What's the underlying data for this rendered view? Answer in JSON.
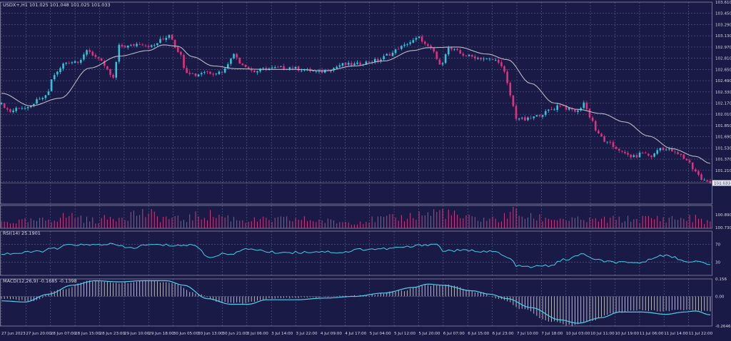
{
  "colors": {
    "background": "#1a1a46",
    "grid": "#5d5d8e",
    "axis_text": "#d8d8e8",
    "bull_candle": "#2ec6d8",
    "bear_candle": "#e0307e",
    "moving_average": "#b8b8c8",
    "volume": "#d23a80",
    "rsi_line": "#3fd0e6",
    "macd_line": "#4fd0e8",
    "macd_histogram": "#c8c8d0",
    "price_badge_bg": "#e8e8f0",
    "price_badge_text": "#1a1a46"
  },
  "chart_data": [
    {
      "id": "price",
      "type": "candlestick",
      "title": "USDX+,H1  101.025 101.048 101.025 101.033",
      "y_ticks": [
        "103.610",
        "103.450",
        "103.290",
        "103.130",
        "102.970",
        "102.810",
        "102.650",
        "102.490",
        "102.330",
        "102.170",
        "102.010",
        "101.850",
        "101.690",
        "101.530",
        "101.370",
        "101.210",
        "101.050",
        "100.890",
        "100.730"
      ],
      "ylim": [
        100.73,
        103.61
      ],
      "current_price_label": "101.033",
      "x_ticks": [
        "27 Jun 2023",
        "27 Jun 20:00",
        "28 Jun 07:00",
        "28 Jun 15:00",
        "28 Jun 23:00",
        "29 Jun 10:00",
        "29 Jun 18:00",
        "30 Jun 05:00",
        "30 Jun 13:00",
        "30 Jun 21:00",
        "3 Jul 06:00",
        "3 Jul 14:00",
        "3 Jul 22:00",
        "4 Jul 09:00",
        "4 Jul 17:00",
        "5 Jul 04:00",
        "5 Jul 12:00",
        "5 Jul 20:00",
        "6 Jul 07:00",
        "6 Jul 15:00",
        "6 Jul 23:00",
        "7 Jul 10:00",
        "7 Jul 18:00",
        "10 Jul 03:00",
        "10 Jul 11:00",
        "10 Jul 19:00",
        "11 Jul 06:00",
        "11 Jul 14:00",
        "11 Jul 22:00"
      ],
      "close_anchors": [
        [
          0,
          102.15
        ],
        [
          3,
          102.05
        ],
        [
          6,
          102.11
        ],
        [
          9,
          102.09
        ],
        [
          12,
          102.2
        ],
        [
          15,
          102.26
        ],
        [
          18,
          102.58
        ],
        [
          22,
          102.75
        ],
        [
          26,
          102.77
        ],
        [
          29,
          102.9
        ],
        [
          33,
          102.82
        ],
        [
          36,
          102.63
        ],
        [
          38,
          102.52
        ],
        [
          40,
          102.98
        ],
        [
          43,
          102.98
        ],
        [
          47,
          103.02
        ],
        [
          51,
          102.98
        ],
        [
          55,
          103.08
        ],
        [
          57,
          103.15
        ],
        [
          60,
          102.92
        ],
        [
          63,
          102.62
        ],
        [
          66,
          102.57
        ],
        [
          69,
          102.62
        ],
        [
          72,
          102.6
        ],
        [
          75,
          102.62
        ],
        [
          79,
          102.86
        ],
        [
          82,
          102.72
        ],
        [
          86,
          102.62
        ],
        [
          90,
          102.66
        ],
        [
          94,
          102.67
        ],
        [
          98,
          102.68
        ],
        [
          102,
          102.65
        ],
        [
          105,
          102.63
        ],
        [
          108,
          102.61
        ],
        [
          112,
          102.66
        ],
        [
          116,
          102.72
        ],
        [
          120,
          102.72
        ],
        [
          124,
          102.75
        ],
        [
          128,
          102.78
        ],
        [
          132,
          102.87
        ],
        [
          136,
          102.97
        ],
        [
          139,
          103.04
        ],
        [
          142,
          103.1
        ],
        [
          145,
          102.97
        ],
        [
          147,
          102.9
        ],
        [
          149,
          102.7
        ],
        [
          152,
          102.95
        ],
        [
          154,
          102.92
        ],
        [
          157,
          102.86
        ],
        [
          160,
          102.83
        ],
        [
          163,
          102.81
        ],
        [
          166,
          102.79
        ],
        [
          169,
          102.77
        ],
        [
          171,
          102.6
        ],
        [
          173,
          102.28
        ],
        [
          175,
          101.96
        ],
        [
          178,
          101.93
        ],
        [
          181,
          101.97
        ],
        [
          184,
          102.02
        ],
        [
          187,
          102.08
        ],
        [
          190,
          102.15
        ],
        [
          193,
          102.08
        ],
        [
          196,
          102.05
        ],
        [
          198,
          102.18
        ],
        [
          200,
          101.98
        ],
        [
          203,
          101.72
        ],
        [
          206,
          101.6
        ],
        [
          209,
          101.53
        ],
        [
          212,
          101.44
        ],
        [
          215,
          101.4
        ],
        [
          218,
          101.46
        ],
        [
          221,
          101.41
        ],
        [
          224,
          101.53
        ],
        [
          227,
          101.5
        ],
        [
          230,
          101.44
        ],
        [
          233,
          101.36
        ],
        [
          236,
          101.2
        ],
        [
          238,
          101.08
        ],
        [
          241,
          101.03
        ]
      ],
      "moving_average_anchors": [
        [
          0,
          102.31
        ],
        [
          10,
          102.13
        ],
        [
          20,
          102.24
        ],
        [
          30,
          102.67
        ],
        [
          40,
          102.84
        ],
        [
          50,
          102.92
        ],
        [
          55,
          103.0
        ],
        [
          60,
          102.98
        ],
        [
          65,
          102.83
        ],
        [
          72,
          102.7
        ],
        [
          80,
          102.66
        ],
        [
          90,
          102.65
        ],
        [
          100,
          102.65
        ],
        [
          110,
          102.63
        ],
        [
          120,
          102.7
        ],
        [
          130,
          102.77
        ],
        [
          140,
          102.92
        ],
        [
          145,
          102.96
        ],
        [
          155,
          102.97
        ],
        [
          165,
          102.87
        ],
        [
          172,
          102.79
        ],
        [
          180,
          102.45
        ],
        [
          188,
          102.17
        ],
        [
          196,
          102.08
        ],
        [
          204,
          102.02
        ],
        [
          212,
          101.9
        ],
        [
          220,
          101.7
        ],
        [
          228,
          101.52
        ],
        [
          236,
          101.41
        ],
        [
          241,
          101.31
        ]
      ]
    },
    {
      "id": "volume",
      "type": "bar",
      "title": "",
      "peaks": [
        [
          0,
          0.35
        ],
        [
          10,
          0.4
        ],
        [
          25,
          0.7
        ],
        [
          30,
          0.45
        ],
        [
          48,
          0.85
        ],
        [
          55,
          0.6
        ],
        [
          60,
          0.5
        ],
        [
          70,
          0.75
        ],
        [
          85,
          0.45
        ],
        [
          100,
          0.5
        ],
        [
          118,
          0.35
        ],
        [
          132,
          0.55
        ],
        [
          145,
          0.8
        ],
        [
          149,
          0.95
        ],
        [
          158,
          0.55
        ],
        [
          170,
          0.5
        ],
        [
          173,
          0.95
        ],
        [
          180,
          0.6
        ],
        [
          200,
          0.45
        ],
        [
          210,
          0.5
        ],
        [
          224,
          0.55
        ],
        [
          236,
          0.55
        ],
        [
          241,
          0.35
        ]
      ]
    },
    {
      "id": "rsi",
      "type": "line",
      "title": "RSI(14) 25.1901",
      "y_ticks": [
        "70",
        "30"
      ],
      "ylim": [
        0,
        100
      ],
      "anchors": [
        [
          0,
          49
        ],
        [
          6,
          50
        ],
        [
          12,
          54
        ],
        [
          18,
          60
        ],
        [
          24,
          70
        ],
        [
          30,
          68
        ],
        [
          36,
          71
        ],
        [
          44,
          62
        ],
        [
          50,
          69
        ],
        [
          60,
          68
        ],
        [
          66,
          68
        ],
        [
          70,
          42
        ],
        [
          78,
          50
        ],
        [
          85,
          60
        ],
        [
          92,
          52
        ],
        [
          100,
          52
        ],
        [
          108,
          54
        ],
        [
          116,
          52
        ],
        [
          122,
          59
        ],
        [
          130,
          60
        ],
        [
          138,
          64
        ],
        [
          145,
          70
        ],
        [
          148,
          71
        ],
        [
          150,
          56
        ],
        [
          160,
          56
        ],
        [
          168,
          53
        ],
        [
          172,
          40
        ],
        [
          176,
          20
        ],
        [
          180,
          19
        ],
        [
          186,
          22
        ],
        [
          192,
          36
        ],
        [
          198,
          48
        ],
        [
          202,
          34
        ],
        [
          208,
          30
        ],
        [
          214,
          27
        ],
        [
          218,
          30
        ],
        [
          224,
          46
        ],
        [
          228,
          42
        ],
        [
          232,
          33
        ],
        [
          236,
          31
        ],
        [
          241,
          25
        ]
      ]
    },
    {
      "id": "macd",
      "type": "bar+line",
      "title": "MACD(12,26,9) -0.1685 -0.1398",
      "y_ticks": [
        "0.156",
        "0.00",
        "-0.2646"
      ],
      "ylim": [
        -0.2646,
        0.156
      ],
      "signal_anchors": [
        [
          0,
          -0.04
        ],
        [
          8,
          -0.05
        ],
        [
          16,
          0.02
        ],
        [
          24,
          0.1
        ],
        [
          32,
          0.14
        ],
        [
          40,
          0.13
        ],
        [
          48,
          0.14
        ],
        [
          56,
          0.14
        ],
        [
          62,
          0.1
        ],
        [
          70,
          -0.02
        ],
        [
          78,
          -0.07
        ],
        [
          84,
          -0.07
        ],
        [
          90,
          -0.03
        ],
        [
          100,
          -0.03
        ],
        [
          110,
          -0.015
        ],
        [
          120,
          0.0
        ],
        [
          130,
          0.03
        ],
        [
          140,
          0.08
        ],
        [
          145,
          0.11
        ],
        [
          150,
          0.1
        ],
        [
          160,
          0.05
        ],
        [
          166,
          0.02
        ],
        [
          172,
          -0.02
        ],
        [
          180,
          -0.1
        ],
        [
          190,
          -0.21
        ],
        [
          196,
          -0.24
        ],
        [
          204,
          -0.19
        ],
        [
          210,
          -0.14
        ],
        [
          218,
          -0.14
        ],
        [
          226,
          -0.16
        ],
        [
          232,
          -0.14
        ],
        [
          236,
          -0.13
        ],
        [
          241,
          -0.165
        ]
      ],
      "histogram_anchors": [
        [
          0,
          -0.02
        ],
        [
          10,
          -0.04
        ],
        [
          20,
          0.06
        ],
        [
          30,
          0.14
        ],
        [
          40,
          0.12
        ],
        [
          50,
          0.14
        ],
        [
          58,
          0.12
        ],
        [
          66,
          0.03
        ],
        [
          74,
          -0.05
        ],
        [
          82,
          -0.06
        ],
        [
          92,
          -0.02
        ],
        [
          104,
          -0.01
        ],
        [
          114,
          0.0
        ],
        [
          124,
          0.01
        ],
        [
          136,
          0.05
        ],
        [
          144,
          0.1
        ],
        [
          152,
          0.1
        ],
        [
          162,
          0.04
        ],
        [
          170,
          -0.03
        ],
        [
          178,
          -0.12
        ],
        [
          186,
          -0.22
        ],
        [
          194,
          -0.26
        ],
        [
          200,
          -0.22
        ],
        [
          208,
          -0.15
        ],
        [
          216,
          -0.12
        ],
        [
          224,
          -0.13
        ],
        [
          232,
          -0.12
        ],
        [
          241,
          -0.13
        ]
      ]
    }
  ]
}
